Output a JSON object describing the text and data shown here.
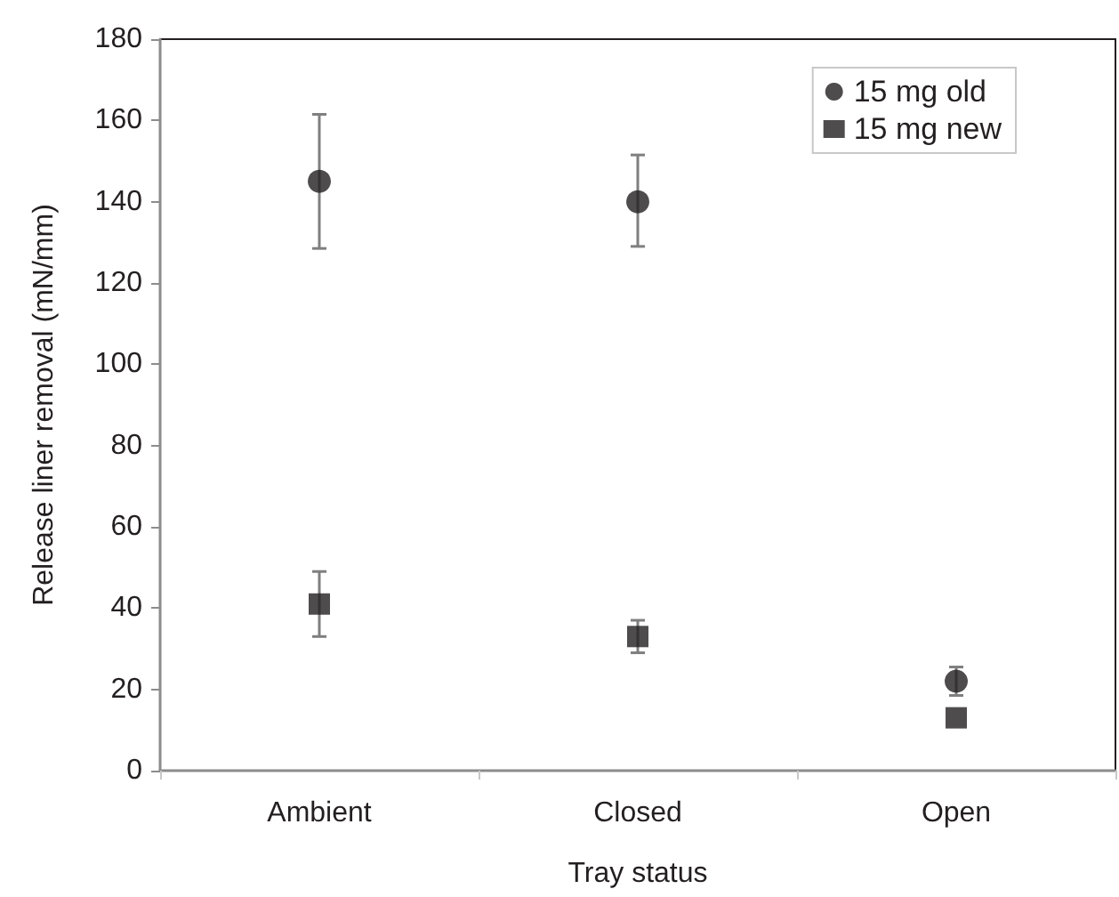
{
  "chart_data": {
    "type": "scatter",
    "xlabel": "Tray status",
    "ylabel": "Release liner removal (mN/mm)",
    "categories": [
      "Ambient",
      "Closed",
      "Open"
    ],
    "series": [
      {
        "name": "15 mg old",
        "color": "#231f20",
        "marker": "circle",
        "values": [
          145,
          140,
          22
        ],
        "errors": [
          [
            128.5,
            161.5
          ],
          [
            129,
            151.5
          ],
          [
            18.5,
            25.5
          ]
        ]
      },
      {
        "name": "15 mg new",
        "color": "#231f20",
        "marker": "square",
        "values": [
          41,
          33,
          13
        ],
        "errors": [
          [
            33,
            49
          ],
          [
            29,
            37
          ],
          null
        ]
      }
    ],
    "ylim": [
      0,
      180
    ],
    "yticks": [
      0,
      20,
      40,
      60,
      80,
      100,
      120,
      140,
      160,
      180
    ],
    "grid": false,
    "legend": "top right"
  }
}
